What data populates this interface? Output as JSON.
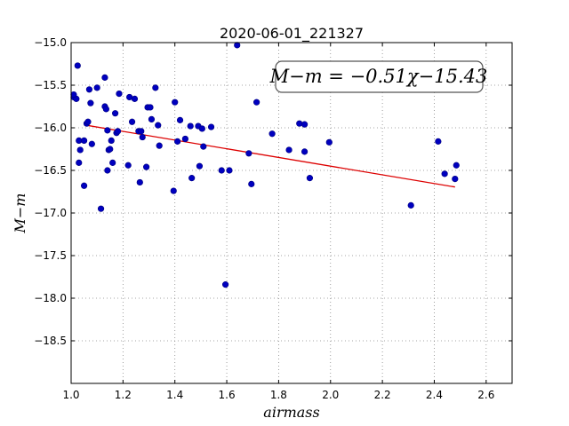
{
  "chart_data": {
    "type": "scatter",
    "title": "2020-06-01_221327",
    "xlabel": "airmass",
    "ylabel": "M−m",
    "xlim": [
      1.0,
      2.7
    ],
    "ylim": [
      -15.0,
      -19.0
    ],
    "y_inverted": true,
    "grid": true,
    "x_ticks": [
      1.0,
      1.2,
      1.4,
      1.6,
      1.8,
      2.0,
      2.2,
      2.4,
      2.6
    ],
    "x_tick_labels": [
      "1.0",
      "1.2",
      "1.4",
      "1.6",
      "1.8",
      "2.0",
      "2.2",
      "2.4",
      "2.6"
    ],
    "y_ticks": [
      -15.0,
      -15.5,
      -16.0,
      -16.5,
      -17.0,
      -17.5,
      -18.0,
      -18.5
    ],
    "y_tick_labels": [
      "−15.0",
      "−15.5",
      "−16.0",
      "−16.5",
      "−17.0",
      "−17.5",
      "−18.0",
      "−18.5"
    ],
    "annotation": "M−m = −0.51χ−15.43",
    "colors": {
      "points": "#0000bf",
      "fit": "#dd0000",
      "grid": "#888888"
    },
    "fit": {
      "slope": -0.51,
      "intercept": -15.43,
      "x_range": [
        1.05,
        2.48
      ]
    },
    "points": [
      {
        "x": 1.01,
        "y": -15.64
      },
      {
        "x": 1.02,
        "y": -15.66
      },
      {
        "x": 1.01,
        "y": -15.61
      },
      {
        "x": 1.025,
        "y": -15.27
      },
      {
        "x": 1.03,
        "y": -16.15
      },
      {
        "x": 1.035,
        "y": -16.26
      },
      {
        "x": 1.03,
        "y": -16.41
      },
      {
        "x": 1.05,
        "y": -16.15
      },
      {
        "x": 1.05,
        "y": -16.68
      },
      {
        "x": 1.06,
        "y": -15.95
      },
      {
        "x": 1.065,
        "y": -15.93
      },
      {
        "x": 1.07,
        "y": -15.55
      },
      {
        "x": 1.075,
        "y": -15.71
      },
      {
        "x": 1.08,
        "y": -16.19
      },
      {
        "x": 1.1,
        "y": -15.53
      },
      {
        "x": 1.115,
        "y": -16.95
      },
      {
        "x": 1.13,
        "y": -15.41
      },
      {
        "x": 1.13,
        "y": -15.75
      },
      {
        "x": 1.135,
        "y": -15.78
      },
      {
        "x": 1.14,
        "y": -16.03
      },
      {
        "x": 1.14,
        "y": -16.5
      },
      {
        "x": 1.145,
        "y": -16.26
      },
      {
        "x": 1.15,
        "y": -16.25
      },
      {
        "x": 1.155,
        "y": -16.15
      },
      {
        "x": 1.16,
        "y": -16.41
      },
      {
        "x": 1.17,
        "y": -15.83
      },
      {
        "x": 1.175,
        "y": -16.06
      },
      {
        "x": 1.18,
        "y": -16.04
      },
      {
        "x": 1.185,
        "y": -15.6
      },
      {
        "x": 1.22,
        "y": -16.44
      },
      {
        "x": 1.225,
        "y": -15.64
      },
      {
        "x": 1.235,
        "y": -15.93
      },
      {
        "x": 1.245,
        "y": -15.66
      },
      {
        "x": 1.26,
        "y": -16.04
      },
      {
        "x": 1.265,
        "y": -16.64
      },
      {
        "x": 1.27,
        "y": -16.04
      },
      {
        "x": 1.275,
        "y": -16.11
      },
      {
        "x": 1.29,
        "y": -16.46
      },
      {
        "x": 1.295,
        "y": -15.76
      },
      {
        "x": 1.305,
        "y": -15.76
      },
      {
        "x": 1.31,
        "y": -15.9
      },
      {
        "x": 1.325,
        "y": -15.53
      },
      {
        "x": 1.335,
        "y": -15.97
      },
      {
        "x": 1.34,
        "y": -16.21
      },
      {
        "x": 1.395,
        "y": -16.74
      },
      {
        "x": 1.4,
        "y": -15.7
      },
      {
        "x": 1.41,
        "y": -16.16
      },
      {
        "x": 1.42,
        "y": -15.91
      },
      {
        "x": 1.44,
        "y": -16.13
      },
      {
        "x": 1.46,
        "y": -15.98
      },
      {
        "x": 1.465,
        "y": -16.59
      },
      {
        "x": 1.49,
        "y": -15.98
      },
      {
        "x": 1.495,
        "y": -16.45
      },
      {
        "x": 1.505,
        "y": -16.01
      },
      {
        "x": 1.51,
        "y": -16.22
      },
      {
        "x": 1.54,
        "y": -15.99
      },
      {
        "x": 1.58,
        "y": -16.5
      },
      {
        "x": 1.595,
        "y": -17.84
      },
      {
        "x": 1.61,
        "y": -16.5
      },
      {
        "x": 1.64,
        "y": -15.03
      },
      {
        "x": 1.685,
        "y": -16.3
      },
      {
        "x": 1.695,
        "y": -16.66
      },
      {
        "x": 1.715,
        "y": -15.7
      },
      {
        "x": 1.775,
        "y": -16.07
      },
      {
        "x": 1.84,
        "y": -16.26
      },
      {
        "x": 1.88,
        "y": -15.95
      },
      {
        "x": 1.9,
        "y": -15.96
      },
      {
        "x": 1.9,
        "y": -16.28
      },
      {
        "x": 1.92,
        "y": -16.59
      },
      {
        "x": 1.995,
        "y": -16.17
      },
      {
        "x": 2.31,
        "y": -16.91
      },
      {
        "x": 2.415,
        "y": -16.16
      },
      {
        "x": 2.44,
        "y": -16.54
      },
      {
        "x": 2.48,
        "y": -16.6
      },
      {
        "x": 2.485,
        "y": -16.44
      }
    ]
  }
}
